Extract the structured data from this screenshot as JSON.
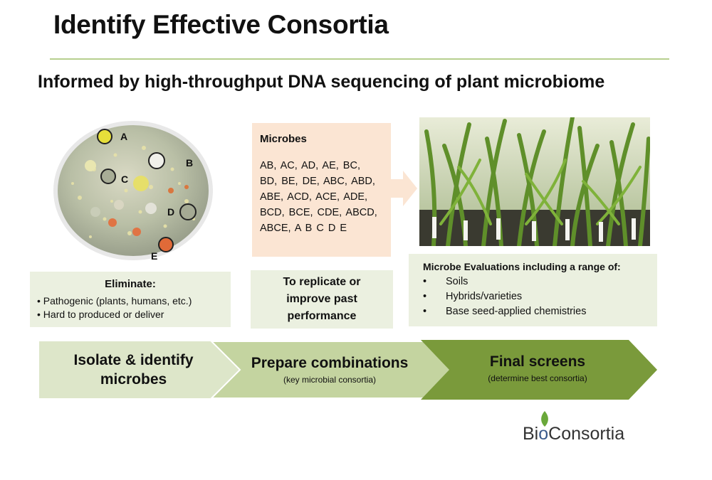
{
  "header": {
    "title": "Identify Effective Consortia",
    "subtitle": "Informed by high-throughput DNA sequencing of plant microbiome"
  },
  "petri": {
    "labels": [
      "A",
      "B",
      "C",
      "D",
      "E"
    ]
  },
  "eliminate": {
    "heading": "Eliminate:",
    "items": [
      "Pathogenic (plants, humans, etc.)",
      "Hard to produced or deliver"
    ]
  },
  "microbes": {
    "heading": "Microbes",
    "lines": [
      "AB, AC, AD, AE, BC,",
      "BD, BE, DE, ABC, ABD,",
      "ABE, ACD, ACE, ADE,",
      "BCD, BCE, CDE, ABCD,",
      "ABCE, A B C D E"
    ]
  },
  "replicate": {
    "text": "To replicate or improve past performance"
  },
  "evaluations": {
    "heading": "Microbe Evaluations including a range of:",
    "items": [
      "Soils",
      "Hybrids/varieties",
      "Base seed-applied chemistries"
    ]
  },
  "steps": {
    "step1": {
      "title": "Isolate & identify microbes"
    },
    "step2": {
      "title": "Prepare combinations",
      "subtitle": "(key microbial consortia)"
    },
    "step3": {
      "title": "Final screens",
      "subtitle": "(determine best consortia)"
    }
  },
  "logo": {
    "part1": "Bi",
    "part2": "o",
    "part3": "Consortia"
  },
  "colors": {
    "accent_green": "#7a9a3b",
    "light_green": "#ebf0e0",
    "peach": "#fbe5d3"
  }
}
